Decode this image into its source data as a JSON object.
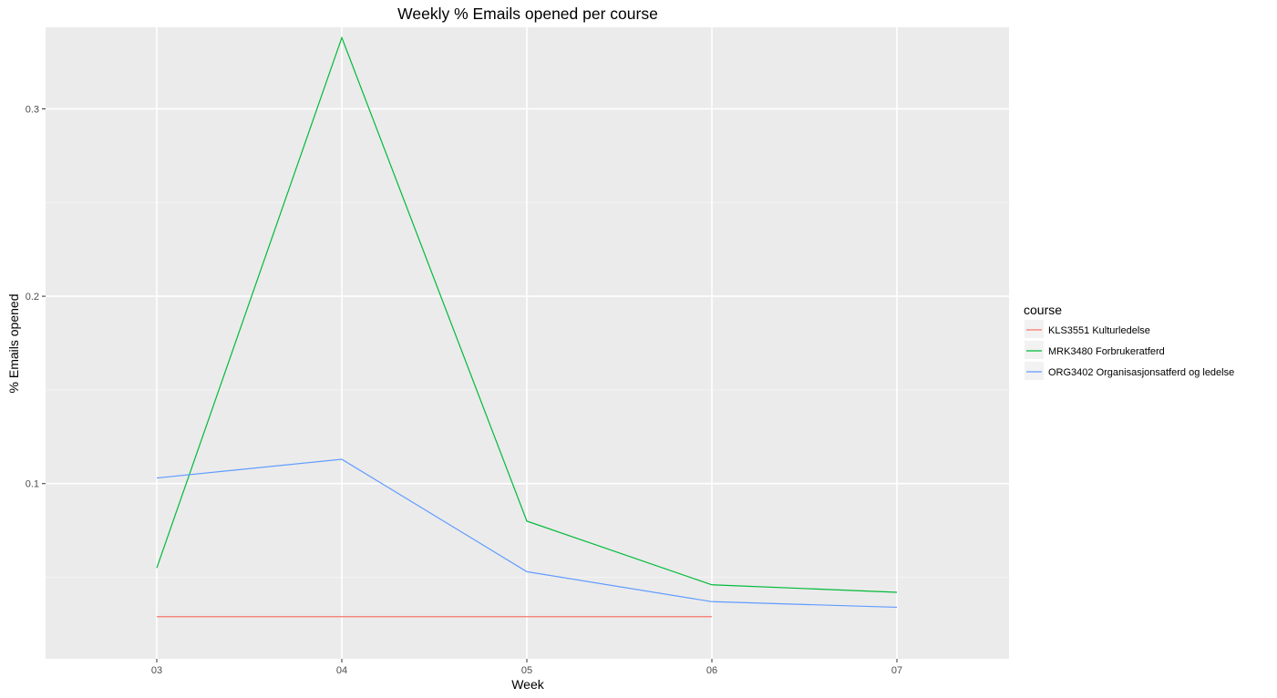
{
  "chart_data": {
    "type": "line",
    "title": "Weekly % Emails opened per course",
    "xlabel": "Week",
    "ylabel": "% Emails opened",
    "categories": [
      "03",
      "04",
      "05",
      "06",
      "07"
    ],
    "y_ticks": [
      0.1,
      0.2,
      0.3
    ],
    "y_tick_labels": [
      "0.1",
      "0.2",
      "0.3"
    ],
    "ylim": [
      0.0065,
      0.3435
    ],
    "grid": true,
    "legend": {
      "title": "course",
      "position": "right"
    },
    "series": [
      {
        "name": "KLS3551 Kulturledelse",
        "color": "#F8766D",
        "values": [
          0.029,
          0.029,
          0.029,
          0.029,
          null
        ]
      },
      {
        "name": "MRK3480 Forbrukeratferd",
        "color": "#00BA38",
        "values": [
          0.055,
          0.338,
          0.08,
          0.046,
          0.042
        ]
      },
      {
        "name": "ORG3402 Organisasjonsatferd og ledelse",
        "color": "#619CFF",
        "values": [
          0.103,
          0.113,
          0.053,
          0.037,
          0.034
        ]
      }
    ]
  }
}
